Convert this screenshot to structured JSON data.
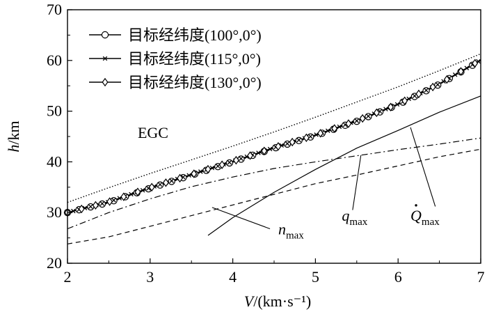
{
  "chart_data": {
    "type": "line",
    "xlabel_var": "V",
    "xlabel_unit": "/(km·s⁻¹)",
    "ylabel_var": "h",
    "ylabel_unit": "/km",
    "xlim": [
      2,
      7
    ],
    "ylim": [
      20,
      70
    ],
    "xticks": [
      2,
      3,
      4,
      5,
      6,
      7
    ],
    "yticks": [
      20,
      30,
      40,
      50,
      60,
      70
    ],
    "grid": false,
    "legend_position": "top-left",
    "series": [
      {
        "name": "目标经纬度(100°,0°)",
        "marker": "circle",
        "style": "solid",
        "x": [
          2.0,
          2.5,
          3.0,
          3.5,
          4.0,
          4.5,
          5.0,
          5.5,
          6.0,
          6.5,
          7.0
        ],
        "y": [
          30.0,
          32.0,
          34.8,
          37.4,
          40.0,
          42.7,
          45.2,
          48.0,
          51.3,
          55.3,
          60.0
        ]
      },
      {
        "name": "目标经纬度(115°,0°)",
        "marker": "x",
        "style": "solid",
        "x": [
          2.0,
          2.5,
          3.0,
          3.5,
          4.0,
          4.5,
          5.0,
          5.5,
          6.0,
          6.5,
          7.0
        ],
        "y": [
          30.0,
          32.1,
          34.9,
          37.5,
          40.1,
          42.8,
          45.3,
          48.1,
          51.4,
          55.4,
          60.1
        ]
      },
      {
        "name": "目标经纬度(130°,0°)",
        "marker": "diamond",
        "style": "solid",
        "x": [
          2.0,
          2.5,
          3.0,
          3.5,
          4.0,
          4.5,
          5.0,
          5.5,
          6.0,
          6.5,
          7.0
        ],
        "y": [
          30.0,
          32.1,
          34.9,
          37.5,
          40.1,
          42.8,
          45.3,
          48.1,
          51.4,
          55.4,
          60.1
        ]
      },
      {
        "name": "EGC",
        "marker": "none",
        "style": "dotted",
        "x": [
          2.0,
          2.5,
          3.0,
          3.5,
          4.0,
          4.5,
          5.0,
          5.5,
          6.0,
          6.5,
          7.0
        ],
        "y": [
          32.0,
          34.9,
          37.7,
          40.4,
          43.1,
          45.9,
          48.8,
          51.8,
          54.8,
          58.0,
          61.3
        ]
      },
      {
        "name": "n_max",
        "marker": "none",
        "style": "dashed",
        "x": [
          2.0,
          2.5,
          3.0,
          3.5,
          4.0,
          4.5,
          5.0,
          5.5,
          6.0,
          6.5,
          7.0
        ],
        "y": [
          23.8,
          25.2,
          27.3,
          29.4,
          31.5,
          33.6,
          35.7,
          37.4,
          39.2,
          41.0,
          42.5
        ]
      },
      {
        "name": "q_max",
        "marker": "none",
        "style": "dashdot",
        "x": [
          2.0,
          2.5,
          3.0,
          3.5,
          4.0,
          4.5,
          5.0,
          5.5,
          6.0,
          6.5,
          7.0
        ],
        "y": [
          26.8,
          30.0,
          32.7,
          35.1,
          37.0,
          38.7,
          40.0,
          41.2,
          42.4,
          43.5,
          44.7
        ]
      },
      {
        "name": "Q̇_max",
        "marker": "none",
        "style": "solid",
        "x": [
          3.7,
          4.0,
          4.5,
          5.0,
          5.5,
          6.0,
          6.5,
          7.0
        ],
        "y": [
          25.5,
          29.0,
          34.0,
          38.5,
          42.7,
          46.2,
          49.8,
          53.0
        ]
      }
    ],
    "annotations": [
      {
        "label": "EGC",
        "base": "EGC",
        "sub": "",
        "dot": false,
        "text_at": [
          2.85,
          44.7
        ],
        "arrow_to": null
      },
      {
        "label": "n_max",
        "base": "n",
        "sub": "max",
        "dot": false,
        "text_at": [
          4.55,
          25.7
        ],
        "arrow_to": [
          3.75,
          31.0
        ],
        "arrow_from": [
          4.45,
          26.8
        ]
      },
      {
        "label": "q_max",
        "base": "q",
        "sub": "max",
        "dot": false,
        "text_at": [
          5.32,
          28.4
        ],
        "arrow_to": [
          5.55,
          41.3
        ],
        "arrow_from": [
          5.45,
          30.5
        ]
      },
      {
        "label": "Q̇_max",
        "base": "Q",
        "sub": "max",
        "dot": true,
        "text_at": [
          6.15,
          28.4
        ],
        "arrow_to": [
          6.15,
          46.8
        ],
        "arrow_from": [
          6.45,
          31.2
        ]
      }
    ]
  }
}
